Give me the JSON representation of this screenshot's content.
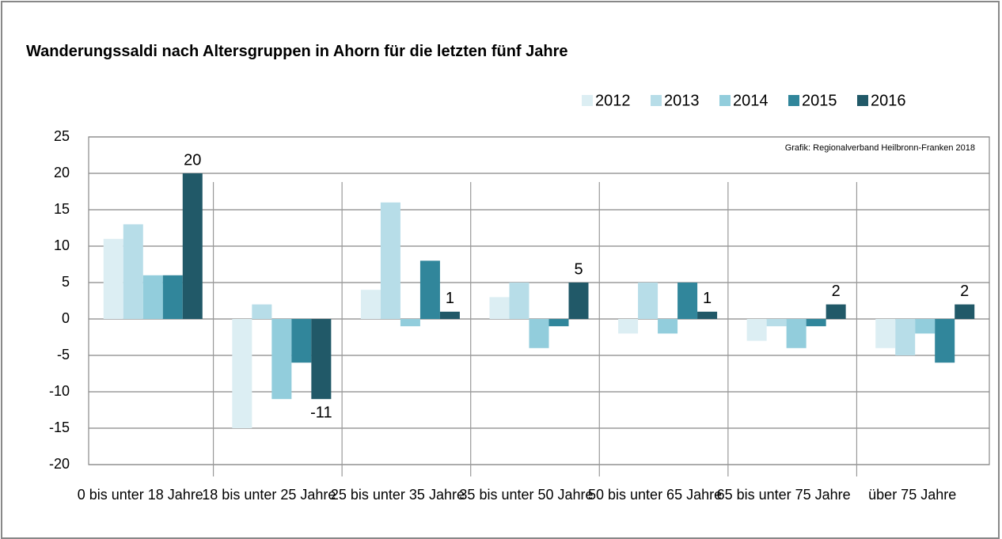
{
  "chart_data": {
    "type": "bar",
    "title": "Wanderungssaldi nach Altersgruppen in Ahorn für die letzten fünf Jahre",
    "annotation": "Grafik: Regionalverband Heilbronn-Franken 2018",
    "categories": [
      "0 bis unter 18 Jahre",
      "18 bis unter 25 Jahre",
      "25 bis unter 35 Jahre",
      "35 bis unter 50 Jahre",
      "50 bis unter 65 Jahre",
      "65 bis unter 75 Jahre",
      "über 75 Jahre"
    ],
    "series": [
      {
        "name": "2012",
        "color": "#dceef3",
        "values": [
          11,
          -15,
          4,
          3,
          -2,
          -3,
          -4
        ]
      },
      {
        "name": "2013",
        "color": "#b7dde8",
        "values": [
          13,
          2,
          16,
          5,
          5,
          -1,
          -5
        ]
      },
      {
        "name": "2014",
        "color": "#92cddc",
        "values": [
          6,
          -11,
          -1,
          -4,
          -2,
          -4,
          -2
        ]
      },
      {
        "name": "2015",
        "color": "#31869b",
        "values": [
          6,
          -6,
          8,
          -1,
          5,
          -1,
          -6
        ]
      },
      {
        "name": "2016",
        "color": "#215968",
        "values": [
          20,
          -11,
          1,
          5,
          1,
          2,
          2
        ],
        "show_labels": true
      }
    ],
    "ylim": [
      -20,
      25
    ],
    "yticks": [
      -20,
      -15,
      -10,
      -5,
      0,
      5,
      10,
      15,
      20,
      25
    ],
    "grid": true,
    "legend": "top-right"
  }
}
